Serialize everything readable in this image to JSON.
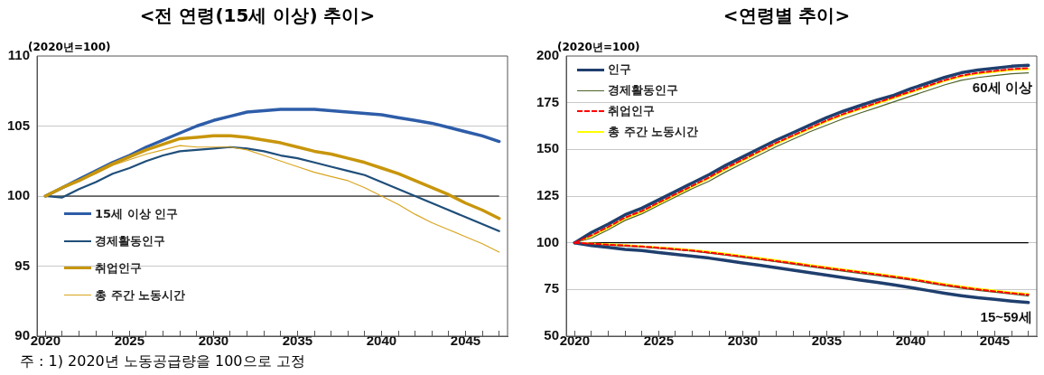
{
  "chart_data": [
    {
      "type": "line",
      "title": "<전 연령(15세 이상) 추이>",
      "ylabel": "(2020년=100)",
      "x": [
        2020,
        2021,
        2022,
        2023,
        2024,
        2025,
        2026,
        2027,
        2028,
        2029,
        2030,
        2031,
        2032,
        2033,
        2034,
        2035,
        2036,
        2037,
        2038,
        2039,
        2040,
        2041,
        2042,
        2043,
        2044,
        2045,
        2046,
        2047
      ],
      "xlim": [
        2019.5,
        2047.5
      ],
      "xticks": [
        2020,
        {
          "value": 2021,
          "label": null
        },
        {
          "value": 2022,
          "label": null
        },
        {
          "value": 2023,
          "label": null
        },
        {
          "value": 2024,
          "label": null
        },
        2025,
        {
          "value": 2026,
          "label": null
        },
        {
          "value": 2027,
          "label": null
        },
        {
          "value": 2028,
          "label": null
        },
        {
          "value": 2029,
          "label": null
        },
        2030,
        {
          "value": 2031,
          "label": null
        },
        {
          "value": 2032,
          "label": null
        },
        {
          "value": 2033,
          "label": null
        },
        {
          "value": 2034,
          "label": null
        },
        2035,
        {
          "value": 2036,
          "label": null
        },
        {
          "value": 2037,
          "label": null
        },
        {
          "value": 2038,
          "label": null
        },
        {
          "value": 2039,
          "label": null
        },
        2040,
        {
          "value": 2041,
          "label": null
        },
        {
          "value": 2042,
          "label": null
        },
        {
          "value": 2043,
          "label": null
        },
        {
          "value": 2044,
          "label": null
        },
        2045,
        {
          "value": 2046,
          "label": null
        },
        {
          "value": 2047,
          "label": null
        }
      ],
      "ylim": [
        90,
        110
      ],
      "yticks": [
        90,
        95,
        100,
        105,
        110
      ],
      "grid": "y",
      "legend": "bottom left",
      "marker": "none",
      "ref_lines": [
        {
          "axis": "y",
          "value": 100,
          "color": "#000000"
        }
      ],
      "annotations": [
        "주 : 1) 2020년 노동공급량을 100으로 고정"
      ],
      "series": [
        {
          "name": "15세 이상 인구",
          "color": "#2e5da8",
          "values": [
            100,
            100.6,
            101.2,
            101.8,
            102.4,
            102.9,
            103.5,
            104.0,
            104.5,
            105.0,
            105.4,
            105.7,
            106.0,
            106.1,
            106.2,
            106.2,
            106.2,
            106.1,
            106.0,
            105.9,
            105.8,
            105.6,
            105.4,
            105.2,
            104.9,
            104.6,
            104.3,
            103.9
          ]
        },
        {
          "name": "경제활동인구",
          "color": "#1f4e79",
          "values": [
            100,
            99.9,
            100.5,
            101.0,
            101.6,
            102.0,
            102.5,
            102.9,
            103.2,
            103.3,
            103.4,
            103.5,
            103.4,
            103.2,
            102.9,
            102.7,
            102.4,
            102.1,
            101.8,
            101.5,
            101.0,
            100.5,
            100.0,
            99.5,
            99.0,
            98.5,
            98.0,
            97.5
          ]
        },
        {
          "name": "취업인구",
          "color": "#c8960c",
          "values": [
            100,
            100.6,
            101.1,
            101.7,
            102.3,
            102.8,
            103.3,
            103.7,
            104.1,
            104.2,
            104.3,
            104.3,
            104.2,
            104.0,
            103.8,
            103.5,
            103.2,
            103.0,
            102.7,
            102.4,
            102.0,
            101.6,
            101.1,
            100.6,
            100.1,
            99.5,
            99.0,
            98.4
          ]
        },
        {
          "name": "총 주간 노동시간",
          "color": "#d9a520",
          "values": [
            100,
            100.6,
            101.1,
            101.6,
            102.2,
            102.6,
            103.0,
            103.3,
            103.6,
            103.5,
            103.5,
            103.5,
            103.3,
            102.9,
            102.5,
            102.1,
            101.7,
            101.4,
            101.1,
            100.6,
            100.0,
            99.4,
            98.7,
            98.1,
            97.6,
            97.1,
            96.6,
            96.0
          ]
        }
      ]
    },
    {
      "type": "line",
      "title": "<연령별 추이>",
      "ylabel": "(2020년=100)",
      "x": [
        2020,
        2021,
        2022,
        2023,
        2024,
        2025,
        2026,
        2027,
        2028,
        2029,
        2030,
        2031,
        2032,
        2033,
        2034,
        2035,
        2036,
        2037,
        2038,
        2039,
        2040,
        2041,
        2042,
        2043,
        2044,
        2045,
        2046,
        2047
      ],
      "xlim": [
        2019.5,
        2047.5
      ],
      "xticks": [
        2020,
        {
          "value": 2021,
          "label": null
        },
        {
          "value": 2022,
          "label": null
        },
        {
          "value": 2023,
          "label": null
        },
        {
          "value": 2024,
          "label": null
        },
        2025,
        {
          "value": 2026,
          "label": null
        },
        {
          "value": 2027,
          "label": null
        },
        {
          "value": 2028,
          "label": null
        },
        {
          "value": 2029,
          "label": null
        },
        2030,
        {
          "value": 2031,
          "label": null
        },
        {
          "value": 2032,
          "label": null
        },
        {
          "value": 2033,
          "label": null
        },
        {
          "value": 2034,
          "label": null
        },
        2035,
        {
          "value": 2036,
          "label": null
        },
        {
          "value": 2037,
          "label": null
        },
        {
          "value": 2038,
          "label": null
        },
        {
          "value": 2039,
          "label": null
        },
        2040,
        {
          "value": 2041,
          "label": null
        },
        {
          "value": 2042,
          "label": null
        },
        {
          "value": 2043,
          "label": null
        },
        {
          "value": 2044,
          "label": null
        },
        2045,
        {
          "value": 2046,
          "label": null
        },
        {
          "value": 2047,
          "label": null
        }
      ],
      "ylim": [
        50,
        200
      ],
      "yticks": [
        50,
        75,
        100,
        125,
        150,
        175,
        200
      ],
      "grid": "y",
      "legend": "top left",
      "marker": "none",
      "ref_lines": [
        {
          "axis": "y",
          "value": 100,
          "color": "#000000"
        }
      ],
      "annotations": [
        {
          "text": "60세 이상",
          "x": 2047,
          "y": 191
        },
        {
          "text": "15~59세",
          "x": 2047,
          "y": 68
        }
      ],
      "series": [
        {
          "name": "인구",
          "color": "#1f3f6e",
          "values": [
            100,
            105.5,
            110,
            115,
            118.5,
            123,
            127.5,
            132,
            136.5,
            141.5,
            146,
            150.5,
            155,
            159,
            163,
            167,
            170.5,
            173.5,
            176.5,
            179,
            182.5,
            185.5,
            188.5,
            191,
            192.5,
            193.5,
            194.5,
            195
          ]
        },
        {
          "name": "경제활동인구",
          "color": "#4f6228",
          "values": [
            100,
            102.5,
            107,
            112,
            115.5,
            120,
            124.5,
            129,
            133,
            138,
            142.5,
            147,
            151.5,
            155.5,
            159.5,
            163,
            166.5,
            169.5,
            172.5,
            175.5,
            178.5,
            181.5,
            184.5,
            187,
            188.5,
            189.5,
            190.5,
            191
          ]
        },
        {
          "name": "취업인구",
          "color": "#ff0000",
          "line_style": "dashed",
          "values": [
            100,
            104,
            108.5,
            113.5,
            117,
            121.5,
            126,
            130.5,
            135,
            140,
            144.5,
            149,
            153.5,
            157.5,
            161.5,
            165.5,
            169,
            172,
            175,
            178,
            181,
            184,
            187,
            189.5,
            191,
            192,
            193,
            193.5
          ]
        },
        {
          "name": "총 주간 노동시간",
          "color": "#ffff00",
          "values": [
            100,
            103.5,
            108,
            113,
            116.5,
            121,
            125.5,
            130,
            134.5,
            139.5,
            144,
            148.5,
            153,
            157,
            161,
            165,
            168.5,
            171.5,
            174.5,
            177.5,
            180.5,
            183.5,
            186.5,
            189,
            190.5,
            191.5,
            192.5,
            193
          ]
        },
        {
          "color": "#1f3f6e",
          "values": [
            100,
            98.5,
            97.5,
            96.5,
            95.8,
            94.8,
            93.8,
            92.8,
            91.8,
            90.5,
            89.2,
            88,
            86.7,
            85.3,
            84,
            82.7,
            81.3,
            80,
            78.8,
            77.5,
            76,
            74.5,
            73,
            71.7,
            70.6,
            69.7,
            68.8,
            68
          ]
        },
        {
          "color": "#4f6228",
          "values": [
            100,
            99.3,
            98.8,
            98.2,
            97.7,
            97,
            96.3,
            95.5,
            94.5,
            93.3,
            92.2,
            91,
            89.8,
            88.5,
            87.2,
            86,
            84.8,
            83.6,
            82.5,
            81.3,
            80,
            78.5,
            77,
            75.7,
            74.5,
            73.5,
            72.5,
            71.5
          ]
        },
        {
          "color": "#ff0000",
          "line_style": "dashed",
          "values": [
            100,
            99.5,
            99,
            98.5,
            98,
            97.3,
            96.6,
            95.8,
            94.8,
            93.7,
            92.6,
            91.4,
            90.2,
            89,
            87.7,
            86.5,
            85.3,
            84.2,
            83,
            81.8,
            80.5,
            79,
            77.5,
            76.2,
            75,
            74,
            73,
            72.2
          ]
        },
        {
          "color": "#ffff00",
          "values": [
            100,
            99.6,
            99.2,
            98.7,
            98.2,
            97.6,
            96.9,
            96.1,
            95.2,
            94.1,
            93,
            91.8,
            90.6,
            89.4,
            88.1,
            86.9,
            85.7,
            84.6,
            83.4,
            82.2,
            80.9,
            79.4,
            77.9,
            76.6,
            75.4,
            74.4,
            73.4,
            72.6
          ]
        }
      ]
    }
  ]
}
